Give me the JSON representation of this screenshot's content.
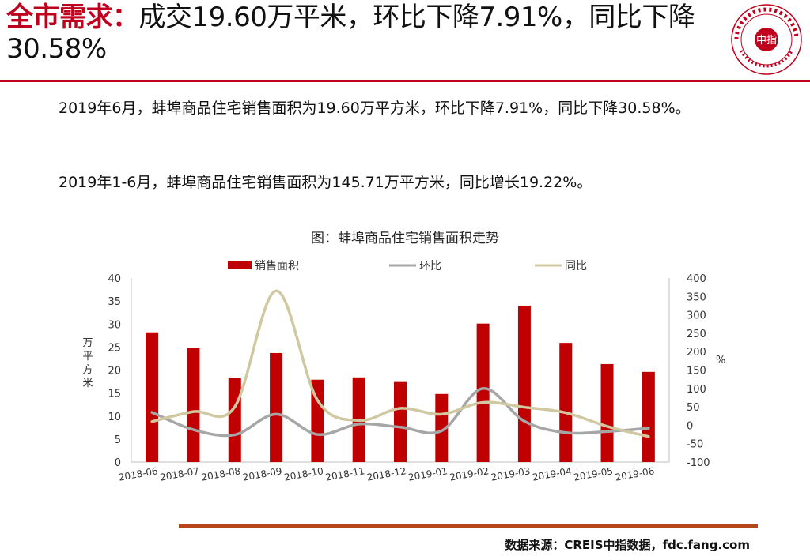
{
  "header": {
    "title_highlight": "全市需求：",
    "title_rest": "成交19.60万平米，环比下降7.91%，同比下降30.58%"
  },
  "body": {
    "para1": "2019年6月，蚌埠商品住宅销售面积为19.60万平方米，环比下降7.91%，同比下降30.58%。",
    "para2": "2019年1-6月，蚌埠商品住宅销售面积为145.71万平方米，同比增长19.22%。"
  },
  "logo": {
    "icon": "china-index-academy-seal",
    "center_text": "中指",
    "colors": {
      "ring": "#c0001d"
    }
  },
  "chart_data": {
    "type": "bar",
    "title": "图：蚌埠商品住宅销售面积走势",
    "categories": [
      "2018-06",
      "2018-07",
      "2018-08",
      "2018-09",
      "2018-10",
      "2018-11",
      "2018-12",
      "2019-01",
      "2019-02",
      "2019-03",
      "2019-04",
      "2019-05",
      "2019-06"
    ],
    "series": [
      {
        "name": "销售面积",
        "type": "bar",
        "axis": "left",
        "color": "#c00000",
        "values": [
          28.2,
          24.8,
          18.2,
          23.7,
          17.9,
          18.4,
          17.4,
          14.8,
          30.1,
          34.0,
          25.9,
          21.3,
          19.6
        ]
      },
      {
        "name": "环比",
        "type": "line",
        "axis": "right",
        "color": "#a6a6a6",
        "values": [
          35,
          -12,
          -26,
          30,
          -25,
          3,
          -5,
          -15,
          100,
          11,
          -20,
          -17,
          -7.91
        ]
      },
      {
        "name": "同比",
        "type": "line",
        "axis": "right",
        "color": "#d0c8a0",
        "values": [
          10,
          37,
          50,
          365,
          68,
          13,
          46,
          30,
          62,
          49,
          34,
          -3,
          -30.58
        ]
      }
    ],
    "ylabel": "万平方米",
    "y2label": "%",
    "ylim": [
      0,
      40
    ],
    "yticks": [
      "0",
      "5",
      "10",
      "15",
      "20",
      "25",
      "30",
      "35",
      "40"
    ],
    "y2lim": [
      -100,
      400
    ],
    "y2ticks": [
      "-100",
      "-50",
      "0",
      "50",
      "100",
      "150",
      "200",
      "250",
      "300",
      "350",
      "400"
    ],
    "legend_position": "top",
    "grid": false
  },
  "footer": {
    "source": "数据来源：CREIS中指数据，fdc.fang.com"
  }
}
